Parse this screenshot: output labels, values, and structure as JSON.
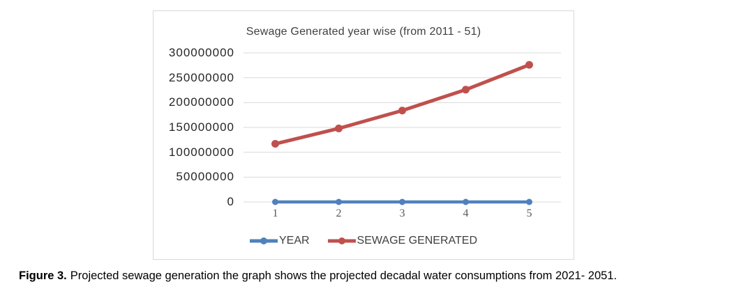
{
  "chart": {
    "border_color": "#d8d8d8",
    "background": "#ffffff"
  },
  "chart_data": {
    "type": "line",
    "title": "Sewage Generated year wise (from 2011 - 51)",
    "title_color": "#3f3f3f",
    "categories": [
      "1",
      "2",
      "3",
      "4",
      "5"
    ],
    "series": [
      {
        "name": "YEAR",
        "color": "#4F81BD",
        "values": [
          2011,
          2021,
          2031,
          2041,
          2051
        ]
      },
      {
        "name": "SEWAGE GENERATED",
        "color": "#C0504D",
        "values": [
          117000000,
          148000000,
          184000000,
          226000000,
          276000000
        ]
      }
    ],
    "xlabel": "",
    "ylabel": "",
    "ylim": [
      0,
      300000000
    ],
    "yticks": [
      0,
      50000000,
      100000000,
      150000000,
      200000000,
      250000000,
      300000000
    ],
    "grid": true,
    "gridline_color": "#d9d9d9",
    "axis_text_color": "#262626",
    "xaxis_text_color": "#595959",
    "legend_position": "bottom"
  },
  "caption": {
    "label": "Figure 3.",
    "text": "Projected sewage generation the graph shows the projected decadal water consumptions from 2021- 2051."
  }
}
